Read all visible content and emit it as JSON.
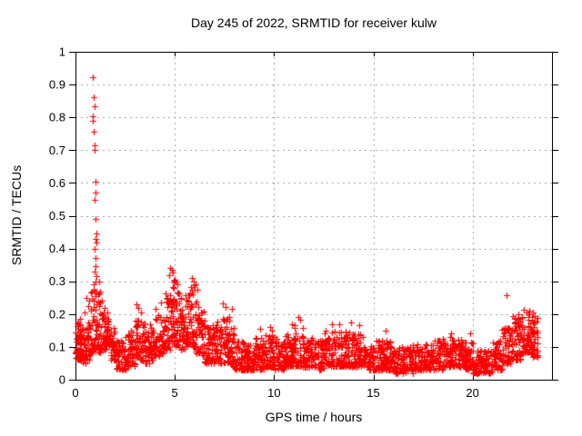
{
  "chart_data": {
    "type": "scatter",
    "title": "Day 245 of 2022, SRMTID for receiver kulw",
    "xlabel": "GPS time / hours",
    "ylabel": "SRMTID / TECUs",
    "xlim": [
      0,
      24
    ],
    "ylim": [
      0,
      1
    ],
    "xticks": [
      0,
      5,
      10,
      15,
      20
    ],
    "xtick_labels": [
      "0",
      "5",
      "10",
      "15",
      "20"
    ],
    "yticks": [
      0,
      0.1,
      0.2,
      0.3,
      0.4,
      0.5,
      0.6,
      0.7,
      0.8,
      0.9,
      1
    ],
    "ytick_labels": [
      "0",
      "0.1",
      "0.2",
      "0.3",
      "0.4",
      "0.5",
      "0.6",
      "0.7",
      "0.8",
      "0.9",
      "1"
    ],
    "grid": true,
    "grid_style": "dashed",
    "legend": "none",
    "marker": "plus",
    "marker_color": "#ff0000",
    "grid_color": "#b0b0b0",
    "border_color": "#000000",
    "background": "#ffffff",
    "seed": 2452022,
    "peak_points": [
      [
        0.86,
        0.922
      ],
      [
        0.91,
        0.862
      ],
      [
        0.94,
        0.835
      ],
      [
        0.86,
        0.802
      ],
      [
        0.88,
        0.79
      ],
      [
        0.91,
        0.756
      ],
      [
        0.95,
        0.715
      ],
      [
        0.96,
        0.7
      ],
      [
        0.99,
        0.604
      ],
      [
        1.02,
        0.571
      ],
      [
        0.95,
        0.548
      ],
      [
        0.99,
        0.49
      ],
      [
        1.04,
        0.445
      ],
      [
        1.0,
        0.428
      ],
      [
        1.06,
        0.417
      ],
      [
        0.97,
        0.4
      ],
      [
        1.01,
        0.37
      ],
      [
        1.03,
        0.345
      ],
      [
        0.98,
        0.33
      ],
      [
        1.05,
        0.315
      ],
      [
        1.0,
        0.3
      ],
      [
        0.93,
        0.29
      ],
      [
        0.96,
        0.27
      ],
      [
        1.02,
        0.255
      ],
      [
        0.9,
        0.24
      ],
      [
        1.07,
        0.23
      ],
      [
        0.45,
        0.205
      ],
      [
        0.55,
        0.25
      ],
      [
        0.62,
        0.225
      ],
      [
        0.7,
        0.24
      ],
      [
        1.15,
        0.26
      ],
      [
        1.2,
        0.3
      ],
      [
        1.25,
        0.27
      ],
      [
        1.35,
        0.24
      ],
      [
        1.18,
        0.225
      ],
      [
        3.05,
        0.23
      ],
      [
        3.15,
        0.22
      ],
      [
        3.3,
        0.205
      ],
      [
        4.05,
        0.215
      ],
      [
        4.3,
        0.235
      ],
      [
        4.7,
        0.318
      ],
      [
        4.78,
        0.34
      ],
      [
        4.86,
        0.335
      ],
      [
        4.92,
        0.328
      ],
      [
        4.97,
        0.305
      ],
      [
        5.06,
        0.3
      ],
      [
        5.12,
        0.29
      ],
      [
        5.88,
        0.31
      ],
      [
        5.95,
        0.3
      ],
      [
        6.05,
        0.29
      ],
      [
        6.12,
        0.275
      ],
      [
        7.42,
        0.232
      ],
      [
        7.55,
        0.222
      ],
      [
        7.88,
        0.215
      ],
      [
        9.3,
        0.155
      ],
      [
        9.8,
        0.16
      ],
      [
        9.9,
        0.15
      ],
      [
        10.9,
        0.17
      ],
      [
        11.2,
        0.19
      ],
      [
        11.32,
        0.183
      ],
      [
        12.9,
        0.17
      ],
      [
        13.3,
        0.168
      ],
      [
        13.9,
        0.175
      ],
      [
        14.3,
        0.165
      ],
      [
        15.6,
        0.15
      ],
      [
        18.9,
        0.14
      ],
      [
        19.9,
        0.14
      ],
      [
        21.7,
        0.258
      ],
      [
        22.05,
        0.195
      ],
      [
        22.3,
        0.2
      ],
      [
        22.6,
        0.212
      ],
      [
        22.85,
        0.21
      ],
      [
        23.05,
        0.205
      ],
      [
        23.15,
        0.195
      ]
    ],
    "band_bins": [
      [
        0.0,
        0.25,
        0.06,
        0.19,
        42
      ],
      [
        0.25,
        0.5,
        0.05,
        0.16,
        34
      ],
      [
        0.5,
        0.75,
        0.06,
        0.19,
        30
      ],
      [
        0.75,
        1.0,
        0.08,
        0.28,
        32
      ],
      [
        1.0,
        1.25,
        0.08,
        0.27,
        32
      ],
      [
        1.25,
        1.5,
        0.09,
        0.22,
        30
      ],
      [
        1.5,
        1.75,
        0.1,
        0.21,
        32
      ],
      [
        1.75,
        2.0,
        0.06,
        0.16,
        30
      ],
      [
        2.0,
        2.5,
        0.03,
        0.12,
        56
      ],
      [
        2.5,
        3.0,
        0.04,
        0.15,
        56
      ],
      [
        3.0,
        3.5,
        0.06,
        0.19,
        58
      ],
      [
        3.5,
        3.75,
        0.05,
        0.15,
        27
      ],
      [
        3.75,
        4.0,
        0.06,
        0.17,
        28
      ],
      [
        4.0,
        4.25,
        0.07,
        0.2,
        28
      ],
      [
        4.25,
        4.5,
        0.08,
        0.22,
        29
      ],
      [
        4.5,
        4.75,
        0.09,
        0.27,
        30
      ],
      [
        4.75,
        5.0,
        0.11,
        0.31,
        32
      ],
      [
        5.0,
        5.25,
        0.1,
        0.27,
        30
      ],
      [
        5.25,
        5.5,
        0.09,
        0.25,
        30
      ],
      [
        5.5,
        5.75,
        0.1,
        0.27,
        30
      ],
      [
        5.75,
        6.0,
        0.1,
        0.29,
        32
      ],
      [
        6.0,
        6.25,
        0.08,
        0.25,
        30
      ],
      [
        6.25,
        6.5,
        0.07,
        0.21,
        29
      ],
      [
        6.5,
        7.0,
        0.05,
        0.17,
        56
      ],
      [
        7.0,
        7.5,
        0.05,
        0.19,
        56
      ],
      [
        7.5,
        7.75,
        0.05,
        0.2,
        28
      ],
      [
        7.75,
        8.0,
        0.04,
        0.16,
        27
      ],
      [
        8.0,
        8.5,
        0.03,
        0.12,
        54
      ],
      [
        8.5,
        9.0,
        0.03,
        0.11,
        54
      ],
      [
        9.0,
        9.5,
        0.03,
        0.13,
        54
      ],
      [
        9.5,
        10.0,
        0.04,
        0.14,
        54
      ],
      [
        10.0,
        10.5,
        0.03,
        0.13,
        54
      ],
      [
        10.5,
        11.0,
        0.04,
        0.14,
        54
      ],
      [
        11.0,
        11.5,
        0.04,
        0.17,
        56
      ],
      [
        11.5,
        12.0,
        0.04,
        0.13,
        54
      ],
      [
        12.0,
        12.5,
        0.03,
        0.12,
        52
      ],
      [
        12.5,
        13.0,
        0.04,
        0.15,
        54
      ],
      [
        13.0,
        13.5,
        0.04,
        0.15,
        54
      ],
      [
        13.5,
        14.0,
        0.04,
        0.15,
        54
      ],
      [
        14.0,
        14.5,
        0.04,
        0.14,
        54
      ],
      [
        14.5,
        15.0,
        0.03,
        0.11,
        52
      ],
      [
        15.0,
        15.5,
        0.03,
        0.12,
        52
      ],
      [
        15.5,
        16.0,
        0.03,
        0.12,
        52
      ],
      [
        16.0,
        16.5,
        0.02,
        0.1,
        50
      ],
      [
        16.5,
        17.0,
        0.02,
        0.1,
        50
      ],
      [
        17.0,
        17.5,
        0.03,
        0.11,
        52
      ],
      [
        17.5,
        18.0,
        0.03,
        0.11,
        52
      ],
      [
        18.0,
        18.5,
        0.03,
        0.12,
        52
      ],
      [
        18.5,
        19.0,
        0.04,
        0.13,
        52
      ],
      [
        19.0,
        19.5,
        0.04,
        0.13,
        52
      ],
      [
        19.5,
        20.0,
        0.03,
        0.12,
        52
      ],
      [
        20.0,
        20.5,
        0.02,
        0.09,
        48
      ],
      [
        20.5,
        21.0,
        0.02,
        0.09,
        48
      ],
      [
        21.0,
        21.5,
        0.03,
        0.12,
        50
      ],
      [
        21.5,
        22.0,
        0.05,
        0.16,
        52
      ],
      [
        22.0,
        22.5,
        0.06,
        0.19,
        56
      ],
      [
        22.5,
        23.0,
        0.08,
        0.21,
        60
      ],
      [
        23.0,
        23.3,
        0.07,
        0.2,
        40
      ]
    ]
  }
}
